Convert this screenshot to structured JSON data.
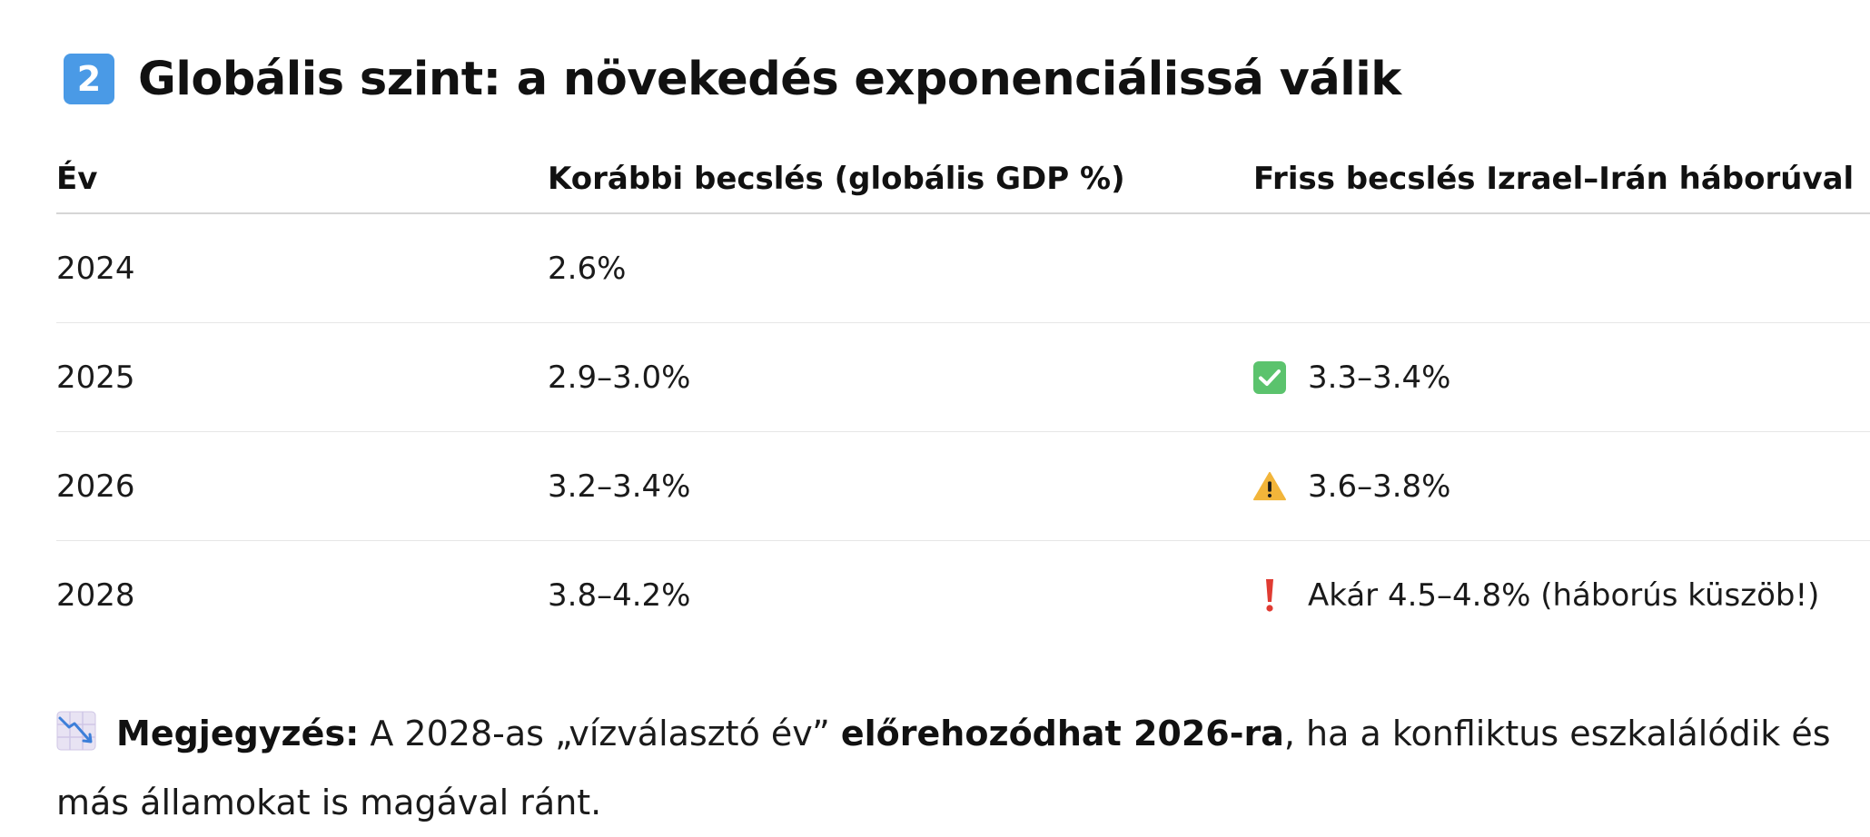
{
  "heading": {
    "number_badge": "2",
    "title": "Globális szint: a növekedés exponenciálissá válik"
  },
  "table": {
    "headers": [
      "Év",
      "Korábbi becslés (globális GDP %)",
      "Friss becslés Izrael–Irán háborúval"
    ],
    "rows": [
      {
        "year": "2024",
        "previous": "2.6%",
        "new_icon": "",
        "new": ""
      },
      {
        "year": "2025",
        "previous": "2.9–3.0%",
        "new_icon": "check-mark-icon",
        "new": "3.3–3.4%"
      },
      {
        "year": "2026",
        "previous": "3.2–3.4%",
        "new_icon": "warning-icon",
        "new": "3.6–3.8%"
      },
      {
        "year": "2028",
        "previous": "3.8–4.2%",
        "new_icon": "exclamation-icon",
        "new": "Akár 4.5–4.8% (háborús küszöb!)"
      }
    ]
  },
  "note": {
    "icon": "chart-decreasing-icon",
    "label": "Megjegyzés:",
    "text_before": " A 2028-as „vízválasztó év” ",
    "emphasis": "előrehozódhat 2026-ra",
    "text_after": ", ha a konfliktus eszkalálódik és más államokat is magával ránt."
  },
  "colors": {
    "badge": "#4a9ae6",
    "check": "#5bc36d",
    "warning": "#f2b53a",
    "exclamation": "#e03b32"
  }
}
